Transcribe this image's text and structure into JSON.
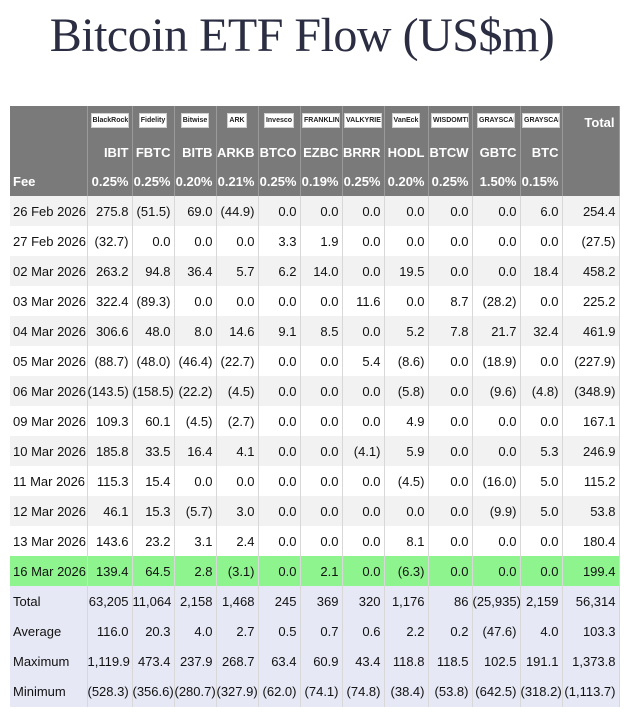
{
  "title": "Bitcoin ETF Flow (US$m)",
  "columns": [
    {
      "code": "IBIT",
      "issuer": "BlackRock",
      "fee": "0.25%"
    },
    {
      "code": "FBTC",
      "issuer": "Fidelity",
      "fee": "0.25%"
    },
    {
      "code": "BITB",
      "issuer": "Bitwise",
      "fee": "0.20%"
    },
    {
      "code": "ARKB",
      "issuer": "ARK",
      "fee": "0.21%"
    },
    {
      "code": "BTCO",
      "issuer": "Invesco",
      "fee": "0.25%"
    },
    {
      "code": "EZBC",
      "issuer": "FRANKLIN TEMPLETON",
      "fee": "0.19%"
    },
    {
      "code": "BRRR",
      "issuer": "VALKYRIE",
      "fee": "0.25%"
    },
    {
      "code": "HODL",
      "issuer": "VanEck",
      "fee": "0.20%"
    },
    {
      "code": "BTCW",
      "issuer": "WISDOMTREE",
      "fee": "0.25%"
    },
    {
      "code": "GBTC",
      "issuer": "GRAYSCALE",
      "fee": "1.50%"
    },
    {
      "code": "BTC",
      "issuer": "GRAYSCALE",
      "fee": "0.15%"
    }
  ],
  "total_label": "Total",
  "fee_label": "Fee",
  "rows": [
    {
      "date": "26 Feb 2026",
      "values": [
        "275.8",
        "(51.5)",
        "69.0",
        "(44.9)",
        "0.0",
        "0.0",
        "0.0",
        "0.0",
        "0.0",
        "0.0",
        "6.0",
        "254.4"
      ]
    },
    {
      "date": "27 Feb 2026",
      "values": [
        "(32.7)",
        "0.0",
        "0.0",
        "0.0",
        "3.3",
        "1.9",
        "0.0",
        "0.0",
        "0.0",
        "0.0",
        "0.0",
        "(27.5)"
      ]
    },
    {
      "date": "02 Mar 2026",
      "values": [
        "263.2",
        "94.8",
        "36.4",
        "5.7",
        "6.2",
        "14.0",
        "0.0",
        "19.5",
        "0.0",
        "0.0",
        "18.4",
        "458.2"
      ]
    },
    {
      "date": "03 Mar 2026",
      "values": [
        "322.4",
        "(89.3)",
        "0.0",
        "0.0",
        "0.0",
        "0.0",
        "11.6",
        "0.0",
        "8.7",
        "(28.2)",
        "0.0",
        "225.2"
      ]
    },
    {
      "date": "04 Mar 2026",
      "values": [
        "306.6",
        "48.0",
        "8.0",
        "14.6",
        "9.1",
        "8.5",
        "0.0",
        "5.2",
        "7.8",
        "21.7",
        "32.4",
        "461.9"
      ]
    },
    {
      "date": "05 Mar 2026",
      "values": [
        "(88.7)",
        "(48.0)",
        "(46.4)",
        "(22.7)",
        "0.0",
        "0.0",
        "5.4",
        "(8.6)",
        "0.0",
        "(18.9)",
        "0.0",
        "(227.9)"
      ]
    },
    {
      "date": "06 Mar 2026",
      "values": [
        "(143.5)",
        "(158.5)",
        "(22.2)",
        "(4.5)",
        "0.0",
        "0.0",
        "0.0",
        "(5.8)",
        "0.0",
        "(9.6)",
        "(4.8)",
        "(348.9)"
      ]
    },
    {
      "date": "09 Mar 2026",
      "values": [
        "109.3",
        "60.1",
        "(4.5)",
        "(2.7)",
        "0.0",
        "0.0",
        "0.0",
        "4.9",
        "0.0",
        "0.0",
        "0.0",
        "167.1"
      ]
    },
    {
      "date": "10 Mar 2026",
      "values": [
        "185.8",
        "33.5",
        "16.4",
        "4.1",
        "0.0",
        "0.0",
        "(4.1)",
        "5.9",
        "0.0",
        "0.0",
        "5.3",
        "246.9"
      ]
    },
    {
      "date": "11 Mar 2026",
      "values": [
        "115.3",
        "15.4",
        "0.0",
        "0.0",
        "0.0",
        "0.0",
        "0.0",
        "(4.5)",
        "0.0",
        "(16.0)",
        "5.0",
        "115.2"
      ]
    },
    {
      "date": "12 Mar 2026",
      "values": [
        "46.1",
        "15.3",
        "(5.7)",
        "3.0",
        "0.0",
        "0.0",
        "0.0",
        "0.0",
        "0.0",
        "(9.9)",
        "5.0",
        "53.8"
      ]
    },
    {
      "date": "13 Mar 2026",
      "values": [
        "143.6",
        "23.2",
        "3.1",
        "2.4",
        "0.0",
        "0.0",
        "0.0",
        "8.1",
        "0.0",
        "0.0",
        "0.0",
        "180.4"
      ]
    },
    {
      "date": "16 Mar 2026",
      "highlight": true,
      "values": [
        "139.4",
        "64.5",
        "2.8",
        "(3.1)",
        "0.0",
        "2.1",
        "0.0",
        "(6.3)",
        "0.0",
        "0.0",
        "0.0",
        "199.4"
      ]
    }
  ],
  "summary": [
    {
      "label": "Total",
      "values": [
        "63,205",
        "11,064",
        "2,158",
        "1,468",
        "245",
        "369",
        "320",
        "1,176",
        "86",
        "(25,935)",
        "2,159",
        "56,314"
      ]
    },
    {
      "label": "Average",
      "values": [
        "116.0",
        "20.3",
        "4.0",
        "2.7",
        "0.5",
        "0.7",
        "0.6",
        "2.2",
        "0.2",
        "(47.6)",
        "4.0",
        "103.3"
      ]
    },
    {
      "label": "Maximum",
      "values": [
        "1,119.9",
        "473.4",
        "237.9",
        "268.7",
        "63.4",
        "60.9",
        "43.4",
        "118.8",
        "118.5",
        "102.5",
        "191.1",
        "1,373.8"
      ]
    },
    {
      "label": "Minimum",
      "values": [
        "(528.3)",
        "(356.6)",
        "(280.7)",
        "(327.9)",
        "(62.0)",
        "(74.1)",
        "(74.8)",
        "(38.4)",
        "(53.8)",
        "(642.5)",
        "(318.2)",
        "(1,113.7)"
      ]
    }
  ],
  "colors": {
    "header": "#7a7a7a",
    "negative": "#d0021b",
    "highlight": "#8ef58e",
    "summary": "#e6e8f5",
    "title": "#2b2d42"
  }
}
